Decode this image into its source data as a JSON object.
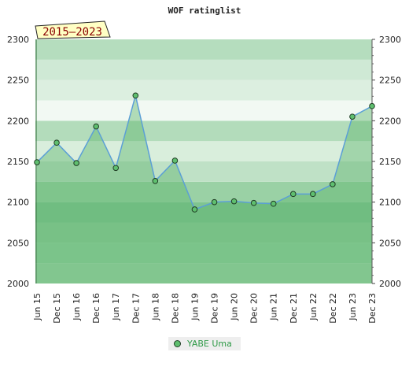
{
  "chart_data": {
    "type": "area",
    "title": "WOF ratinglist",
    "badge": "2015–2023",
    "categories": [
      "Jun 15",
      "Dec 15",
      "Jun 16",
      "Dec 16",
      "Jun 17",
      "Dec 17",
      "Jun 18",
      "Dec 18",
      "Jun 19",
      "Dec 19",
      "Jun 20",
      "Dec 20",
      "Jun 21",
      "Dec 21",
      "Jun 22",
      "Dec 22",
      "Jun 23",
      "Dec 23"
    ],
    "series": [
      {
        "name": "YABE Uma",
        "values": [
          2149,
          2173,
          2148,
          2193,
          2142,
          2231,
          2126,
          2151,
          2091,
          2100,
          2101,
          2099,
          2098,
          2110,
          2110,
          2122,
          2205,
          2218
        ]
      }
    ],
    "ylim": [
      2000,
      2300
    ],
    "yticks": [
      2000,
      2050,
      2100,
      2150,
      2200,
      2250,
      2300
    ],
    "xlabel": "",
    "ylabel": "",
    "legend_position": "bottom",
    "colors": {
      "line": "#5b9fd6",
      "area": "#5fb56e",
      "marker": "#5fbf6f",
      "band_dark": "#8ccb9a",
      "band_light": "#f2f9f3"
    }
  }
}
